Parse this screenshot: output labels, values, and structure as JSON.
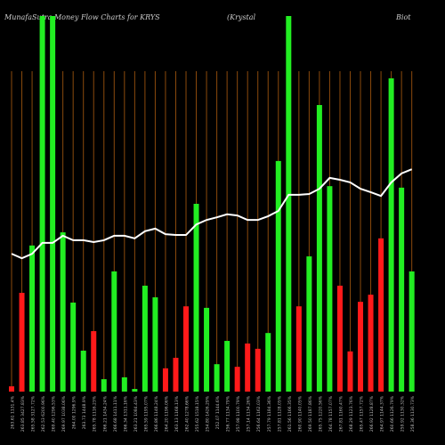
{
  "chart_data": {
    "type": "bar",
    "title": "MunafaSutra  Money Flow  Charts for KRYS",
    "subtitle": "(Krystal",
    "subtitle2": "Biot",
    "categories": [
      "263.61 1131.4%",
      "263.85 3427.83%",
      "265.58 3127.72%",
      "262.53 6200.96%",
      "269.40 1296.53%",
      "269.97 1038.06%",
      "264.00 1296.9%",
      "263.73 1448.9%",
      "265.78 1116.23%",
      "266.21 1434.24%",
      "266.68 1411.11%",
      "266.34 1311.16%",
      "263.21 1084.43%",
      "265.59 1195.07%",
      "266.86 1148.24%",
      "264.20 1196.06%",
      "263.13 1168.13%",
      "262.40 1278.66%",
      "255.62 1518.15%",
      "254.80 1426.29%",
      "252.07 1144.6%",
      "256.77 1134.79%",
      "257.98 1100.79%",
      "257.14 1134.26%",
      "256.64 1162.03%",
      "257.79 1184.36%",
      "257.81 1128.05%",
      "261.56 1166.35%",
      "260.90 1140.05%",
      "269.50 1187.86%",
      "265.75 1220.56%",
      "264.78 1157.07%",
      "267.81 1160.47%",
      "268.29 1123.76%",
      "265.47 1157.72%",
      "266.92 1128.87%",
      "264.97 1144.37%",
      "260.66 1126.79%",
      "259.92 1130.32%",
      "258.36 1130.73%"
    ],
    "series": [
      {
        "name": "Money Flow",
        "values": [
          1.4,
          26.3,
          38.9,
          100,
          100,
          42.4,
          23.7,
          10.9,
          16.1,
          3.3,
          32,
          3.8,
          0.7,
          28.2,
          25.1,
          6.2,
          9,
          22.7,
          50,
          22.3,
          7.3,
          13.5,
          6.6,
          12.8,
          11.4,
          15.6,
          61.4,
          100,
          22.7,
          36,
          76.3,
          54.7,
          28.2,
          10.7,
          23.9,
          25.8,
          40.8,
          83.4,
          54.3,
          32
        ],
        "colors": [
          "#ff1a1a",
          "#ff1a1a",
          "#22ee22",
          "#22ee22",
          "#22ee22",
          "#22ee22",
          "#22ee22",
          "#22ee22",
          "#ff1a1a",
          "#22ee22",
          "#22ee22",
          "#22ee22",
          "#22ee22",
          "#22ee22",
          "#22ee22",
          "#ff1a1a",
          "#ff1a1a",
          "#ff1a1a",
          "#22ee22",
          "#22ee22",
          "#22ee22",
          "#22ee22",
          "#ff1a1a",
          "#ff1a1a",
          "#ff1a1a",
          "#22ee22",
          "#22ee22",
          "#22ee22",
          "#ff1a1a",
          "#22ee22",
          "#22ee22",
          "#22ee22",
          "#ff1a1a",
          "#ff1a1a",
          "#ff1a1a",
          "#ff1a1a",
          "#ff1a1a",
          "#22ee22",
          "#22ee22",
          "#22ee22"
        ]
      },
      {
        "name": "Price",
        "color": "#ffffff",
        "values": [
          36.7,
          35.5,
          36.7,
          39.6,
          39.6,
          41.5,
          40.3,
          40.3,
          39.8,
          40.3,
          41.5,
          41.5,
          40.8,
          42.7,
          43.4,
          41.9,
          41.7,
          41.7,
          44.5,
          45.7,
          46.4,
          47.2,
          46.9,
          45.7,
          45.7,
          46.7,
          48.1,
          52.4,
          52.4,
          52.6,
          54,
          56.9,
          56.4,
          55.7,
          54,
          53.1,
          52.1,
          55.7,
          58.1,
          59.2
        ]
      }
    ],
    "ylim": [
      0,
      100
    ],
    "grid_color": "#8b4a0c"
  }
}
